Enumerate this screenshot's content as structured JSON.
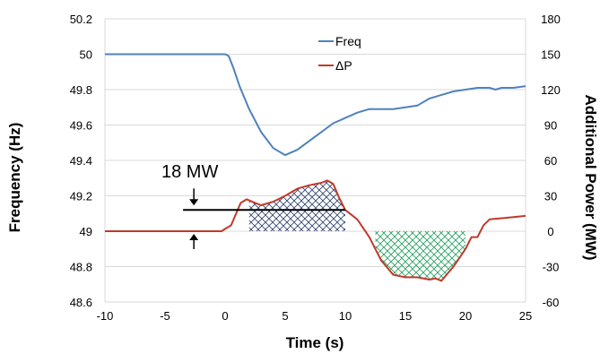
{
  "chart_data": {
    "type": "line",
    "xlabel": "Time (s)",
    "ylabel": "Frequency (Hz)",
    "y2label": "Additional Power (MW)",
    "xlim": [
      -10,
      25
    ],
    "ylim": [
      48.6,
      50.2
    ],
    "y2lim": [
      -60,
      180
    ],
    "xticks": [
      -10,
      -5,
      0,
      5,
      10,
      15,
      20,
      25
    ],
    "yticks": [
      "48.6",
      "48.8",
      "49",
      "49.2",
      "49.4",
      "49.6",
      "49.8",
      "50",
      "50.2"
    ],
    "y2ticks": [
      -60,
      -30,
      0,
      30,
      60,
      90,
      120,
      150,
      180
    ],
    "grid": "horizontal",
    "legend_position": "top-center",
    "series": [
      {
        "name": "Freq",
        "axis": "left",
        "color": "#4f81bd",
        "x": [
          -10,
          -2,
          -1,
          -0.5,
          0,
          0.3,
          0.7,
          1.2,
          2,
          3,
          4,
          5,
          6,
          7,
          8,
          9,
          10,
          11,
          12,
          13,
          14,
          15,
          16,
          17,
          18,
          19,
          20,
          21,
          22,
          22.5,
          23,
          24,
          25
        ],
        "y": [
          50.0,
          50.0,
          50.0,
          50.0,
          50.0,
          49.99,
          49.92,
          49.82,
          49.69,
          49.56,
          49.47,
          49.43,
          49.46,
          49.51,
          49.56,
          49.61,
          49.64,
          49.67,
          49.69,
          49.69,
          49.69,
          49.7,
          49.71,
          49.75,
          49.77,
          49.79,
          49.8,
          49.81,
          49.81,
          49.8,
          49.81,
          49.81,
          49.82
        ]
      },
      {
        "name": "ΔP",
        "axis": "right",
        "color": "#c0392b",
        "x": [
          -10,
          -0.3,
          0,
          0.5,
          1,
          1.3,
          1.8,
          2.5,
          3,
          4,
          5,
          6,
          7,
          8,
          8.5,
          9,
          9.5,
          10,
          11,
          12,
          12.5,
          13,
          14,
          15,
          16,
          17,
          17.5,
          18,
          18.5,
          19,
          20,
          20.5,
          21,
          21.5,
          22,
          23,
          24,
          25
        ],
        "y": [
          0,
          0,
          2,
          5,
          17,
          24,
          27,
          24,
          22,
          25,
          30,
          36,
          39,
          41,
          43,
          40,
          28,
          18,
          10,
          -5,
          -15,
          -25,
          -37,
          -39,
          -39,
          -41,
          -40,
          -42,
          -36,
          -30,
          -15,
          -5,
          -5,
          5,
          10,
          11,
          12,
          13
        ]
      }
    ],
    "annotations": {
      "label": "18 MW",
      "line_y2": 18,
      "line_x": [
        -3.5,
        10
      ]
    },
    "shaded_regions": [
      {
        "x_start": 2,
        "x_end": 10,
        "pattern": "crosshatch",
        "color": "#2c3e6e"
      },
      {
        "x_start": 12.5,
        "x_end": 20,
        "pattern": "crosshatch",
        "color": "#1e9e5a"
      }
    ]
  }
}
